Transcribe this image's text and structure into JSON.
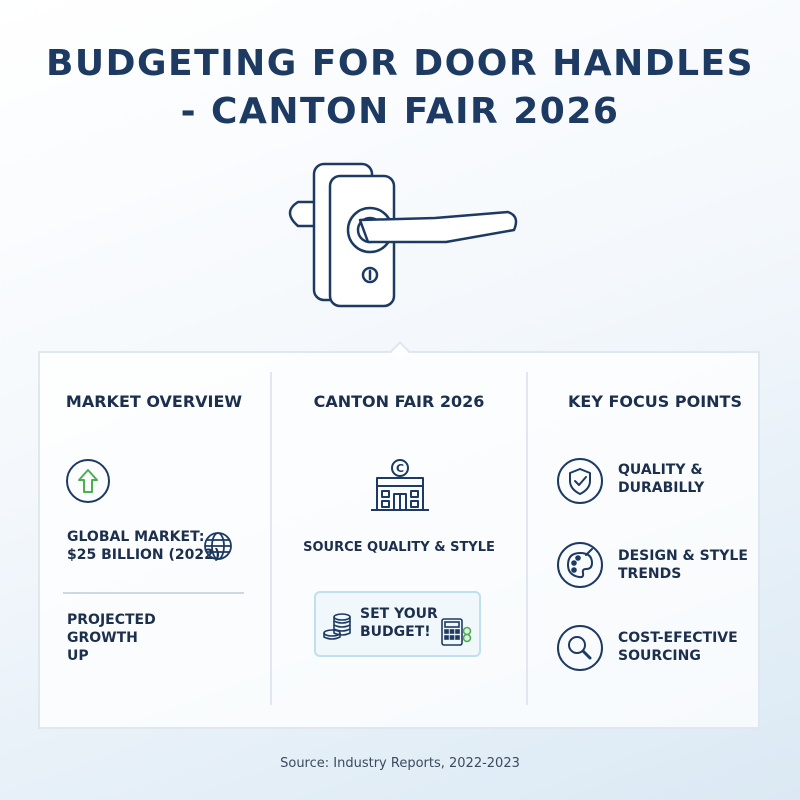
{
  "title": {
    "line1": "BUDGETING FOR DOOR HANDLES",
    "line2": "- CANTON FAIR 2026"
  },
  "hero": {
    "icon": "door-handle-icon"
  },
  "columns": {
    "market": {
      "heading": "MARKET OVERVIEW",
      "growth_icon": "up-arrow-icon",
      "global_label_line1": "GLOBAL MARKET:",
      "global_label_line2": "$25 BILLION (2022)",
      "globe_icon": "globe-icon",
      "projected_line1": "PROJECTED",
      "projected_line2": "GROWTH",
      "projected_line3": "UP"
    },
    "fair": {
      "heading": "CANTON FAIR 2026",
      "building_icon": "building-icon",
      "source_text": "SOURCE QUALITY & STYLE",
      "budget_line1": "SET YOUR",
      "budget_line2": "BUDGET!",
      "coins_icon": "coins-icon",
      "calculator_icon": "calculator-icon"
    },
    "focus": {
      "heading": "KEY FOCUS POINTS",
      "items": [
        {
          "icon": "shield-check-icon",
          "line1": "QUALITY &",
          "line2": "DURABILLY"
        },
        {
          "icon": "palette-icon",
          "line1": "DESIGN & STYLE",
          "line2": "TRENDS"
        },
        {
          "icon": "magnifier-icon",
          "line1": "COST-EFECTIVE",
          "line2": "SOURCING"
        }
      ]
    }
  },
  "footer": {
    "source": "Source: Industry Reports, 2022-2023"
  },
  "colors": {
    "navy": "#1d3a63",
    "green": "#4caf50",
    "panel_border": "#dfe7ef"
  }
}
